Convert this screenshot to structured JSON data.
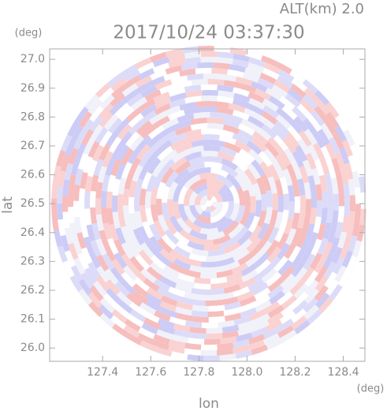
{
  "chart_data": {
    "type": "ppi",
    "title": "2017/10/24 03:37:30",
    "annotation": "ALT(km) 2.0",
    "x_label": "lon",
    "y_label": "lat",
    "x_unit": "(deg)",
    "y_unit": "(deg)",
    "xlim": [
      127.18,
      128.49
    ],
    "ylim": [
      25.954,
      27.036
    ],
    "xticks": [
      127.4,
      127.6,
      127.8,
      {
        "value": 128,
        "label": "128.0"
      },
      128.2,
      128.4
    ],
    "yticks": [
      {
        "value": 26,
        "label": "26.0"
      },
      26.1,
      26.2,
      26.3,
      26.4,
      26.5,
      26.6,
      26.7,
      26.8,
      26.9,
      {
        "value": 27,
        "label": "27.0"
      }
    ]
  }
}
